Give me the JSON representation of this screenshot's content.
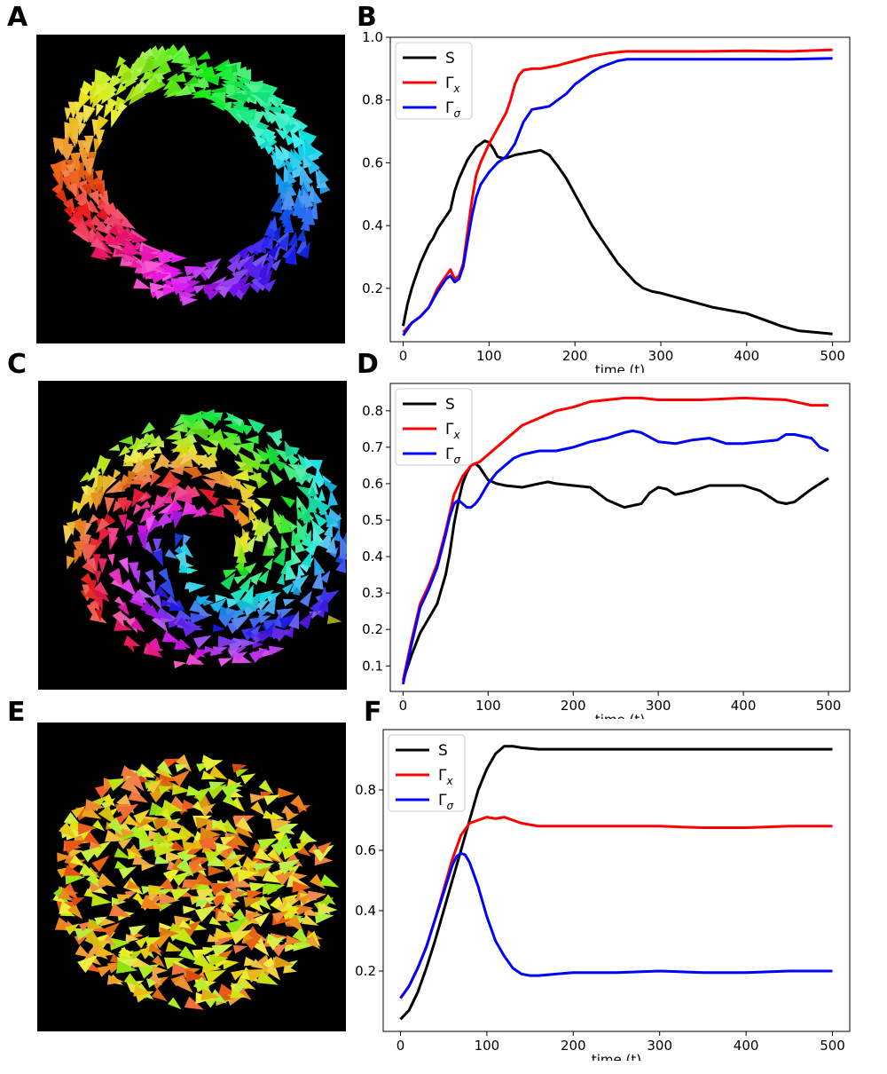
{
  "panels": {
    "A": "A",
    "B": "B",
    "C": "C",
    "D": "D",
    "E": "E",
    "F": "F"
  },
  "simulations": [
    {
      "panel": "A",
      "pattern": "ring"
    },
    {
      "panel": "C",
      "pattern": "swirl"
    },
    {
      "panel": "E",
      "pattern": "disk"
    }
  ],
  "chart_data": [
    {
      "panel": "B",
      "type": "line",
      "title": "",
      "xlabel": "time (t)",
      "ylabel": "",
      "xlim": [
        -15,
        520
      ],
      "ylim": [
        0.03,
        1.0
      ],
      "xticks": [
        0,
        100,
        200,
        300,
        400,
        500
      ],
      "yticks": [
        0.2,
        0.4,
        0.6,
        0.8,
        1.0
      ],
      "ytick_labels": [
        "0.2",
        "0.4",
        "0.6",
        "0.8",
        "1.0"
      ],
      "legend": "top-left",
      "series": [
        {
          "name": "S",
          "sub": "",
          "color": "#000000",
          "x": [
            0,
            5,
            10,
            15,
            20,
            25,
            30,
            35,
            40,
            45,
            50,
            55,
            60,
            65,
            70,
            75,
            80,
            85,
            90,
            95,
            100,
            105,
            110,
            115,
            120,
            130,
            140,
            150,
            160,
            170,
            180,
            190,
            200,
            210,
            220,
            230,
            240,
            250,
            260,
            270,
            280,
            290,
            300,
            320,
            340,
            360,
            380,
            400,
            420,
            440,
            460,
            480,
            500
          ],
          "y": [
            0.08,
            0.15,
            0.2,
            0.24,
            0.28,
            0.31,
            0.34,
            0.36,
            0.39,
            0.41,
            0.43,
            0.45,
            0.51,
            0.55,
            0.58,
            0.61,
            0.63,
            0.65,
            0.66,
            0.67,
            0.665,
            0.645,
            0.62,
            0.615,
            0.615,
            0.625,
            0.63,
            0.635,
            0.64,
            0.625,
            0.59,
            0.55,
            0.5,
            0.45,
            0.4,
            0.36,
            0.32,
            0.28,
            0.25,
            0.22,
            0.2,
            0.19,
            0.185,
            0.17,
            0.155,
            0.14,
            0.13,
            0.12,
            0.1,
            0.08,
            0.065,
            0.06,
            0.055
          ]
        },
        {
          "name": "Γ",
          "sub": "x",
          "color": "#ff0000",
          "x": [
            0,
            10,
            20,
            30,
            40,
            50,
            55,
            60,
            65,
            70,
            75,
            80,
            85,
            90,
            100,
            110,
            120,
            125,
            130,
            135,
            140,
            150,
            160,
            170,
            180,
            200,
            220,
            240,
            260,
            300,
            350,
            400,
            450,
            500
          ],
          "y": [
            0.06,
            0.09,
            0.11,
            0.14,
            0.2,
            0.24,
            0.26,
            0.23,
            0.24,
            0.28,
            0.38,
            0.48,
            0.56,
            0.6,
            0.66,
            0.71,
            0.76,
            0.8,
            0.85,
            0.88,
            0.895,
            0.9,
            0.9,
            0.905,
            0.91,
            0.925,
            0.94,
            0.95,
            0.955,
            0.955,
            0.955,
            0.957,
            0.955,
            0.96
          ]
        },
        {
          "name": "Γ",
          "sub": "σ",
          "color": "#0000ff",
          "x": [
            0,
            10,
            20,
            30,
            40,
            50,
            55,
            60,
            65,
            70,
            75,
            80,
            85,
            90,
            100,
            110,
            120,
            130,
            140,
            150,
            160,
            170,
            180,
            190,
            200,
            210,
            220,
            230,
            240,
            250,
            260,
            300,
            350,
            400,
            450,
            500
          ],
          "y": [
            0.05,
            0.09,
            0.11,
            0.14,
            0.19,
            0.23,
            0.24,
            0.22,
            0.23,
            0.27,
            0.35,
            0.43,
            0.49,
            0.53,
            0.57,
            0.6,
            0.62,
            0.66,
            0.73,
            0.77,
            0.775,
            0.78,
            0.8,
            0.82,
            0.85,
            0.87,
            0.89,
            0.905,
            0.915,
            0.925,
            0.93,
            0.93,
            0.93,
            0.93,
            0.93,
            0.933
          ]
        }
      ]
    },
    {
      "panel": "D",
      "type": "line",
      "title": "",
      "xlabel": "time (t)",
      "ylabel": "",
      "xlim": [
        -15,
        525
      ],
      "ylim": [
        0.03,
        0.875
      ],
      "xticks": [
        0,
        100,
        200,
        300,
        400,
        500
      ],
      "yticks": [
        0.1,
        0.2,
        0.3,
        0.4,
        0.5,
        0.6,
        0.7,
        0.8
      ],
      "ytick_labels": [
        "0.1",
        "0.2",
        "0.3",
        "0.4",
        "0.5",
        "0.6",
        "0.7",
        "0.8"
      ],
      "legend": "top-left",
      "series": [
        {
          "name": "S",
          "sub": "",
          "color": "#000000",
          "x": [
            0,
            10,
            20,
            30,
            40,
            50,
            55,
            60,
            65,
            70,
            75,
            80,
            85,
            90,
            100,
            110,
            120,
            140,
            160,
            170,
            180,
            200,
            220,
            240,
            260,
            280,
            290,
            300,
            310,
            320,
            340,
            360,
            380,
            400,
            420,
            440,
            450,
            460,
            480,
            500
          ],
          "y": [
            0.06,
            0.13,
            0.19,
            0.23,
            0.27,
            0.35,
            0.41,
            0.49,
            0.55,
            0.6,
            0.63,
            0.65,
            0.655,
            0.645,
            0.61,
            0.6,
            0.595,
            0.59,
            0.6,
            0.605,
            0.6,
            0.595,
            0.59,
            0.555,
            0.535,
            0.545,
            0.575,
            0.59,
            0.585,
            0.57,
            0.58,
            0.595,
            0.595,
            0.595,
            0.58,
            0.55,
            0.545,
            0.55,
            0.585,
            0.615
          ]
        },
        {
          "name": "Γ",
          "sub": "x",
          "color": "#ff0000",
          "x": [
            0,
            10,
            20,
            30,
            40,
            50,
            60,
            70,
            80,
            90,
            100,
            120,
            140,
            160,
            180,
            200,
            220,
            240,
            260,
            280,
            300,
            350,
            400,
            450,
            480,
            500
          ],
          "y": [
            0.06,
            0.17,
            0.27,
            0.32,
            0.38,
            0.47,
            0.57,
            0.62,
            0.65,
            0.66,
            0.68,
            0.72,
            0.76,
            0.78,
            0.8,
            0.81,
            0.825,
            0.83,
            0.835,
            0.835,
            0.83,
            0.83,
            0.835,
            0.83,
            0.815,
            0.815
          ]
        },
        {
          "name": "Γ",
          "sub": "σ",
          "color": "#0000ff",
          "x": [
            0,
            10,
            20,
            30,
            40,
            50,
            55,
            60,
            65,
            70,
            75,
            80,
            85,
            90,
            100,
            110,
            120,
            130,
            140,
            160,
            180,
            200,
            220,
            240,
            260,
            270,
            280,
            300,
            320,
            340,
            360,
            380,
            400,
            420,
            440,
            450,
            460,
            480,
            490,
            500
          ],
          "y": [
            0.05,
            0.16,
            0.26,
            0.31,
            0.37,
            0.46,
            0.51,
            0.545,
            0.555,
            0.545,
            0.535,
            0.535,
            0.545,
            0.56,
            0.6,
            0.63,
            0.65,
            0.67,
            0.68,
            0.69,
            0.69,
            0.7,
            0.715,
            0.725,
            0.74,
            0.745,
            0.74,
            0.715,
            0.71,
            0.72,
            0.725,
            0.71,
            0.71,
            0.715,
            0.72,
            0.735,
            0.735,
            0.725,
            0.7,
            0.69
          ]
        }
      ]
    },
    {
      "panel": "F",
      "type": "line",
      "title": "",
      "xlabel": "time (t)",
      "ylabel": "",
      "xlim": [
        -20,
        520
      ],
      "ylim": [
        0.0,
        1.0
      ],
      "xticks": [
        0,
        100,
        200,
        300,
        400,
        500
      ],
      "yticks": [
        0.2,
        0.4,
        0.6,
        0.8
      ],
      "ytick_labels": [
        "0.2",
        "0.4",
        "0.6",
        "0.8"
      ],
      "legend": "top-left",
      "series": [
        {
          "name": "S",
          "sub": "",
          "color": "#000000",
          "x": [
            0,
            10,
            20,
            30,
            40,
            50,
            60,
            70,
            80,
            90,
            100,
            110,
            120,
            130,
            140,
            160,
            200,
            250,
            300,
            350,
            400,
            450,
            500
          ],
          "y": [
            0.04,
            0.07,
            0.13,
            0.21,
            0.3,
            0.4,
            0.5,
            0.6,
            0.7,
            0.8,
            0.87,
            0.92,
            0.945,
            0.945,
            0.94,
            0.935,
            0.935,
            0.935,
            0.935,
            0.935,
            0.935,
            0.935,
            0.935
          ]
        },
        {
          "name": "Γ",
          "sub": "x",
          "color": "#ff0000",
          "x": [
            0,
            10,
            20,
            30,
            40,
            50,
            60,
            70,
            80,
            90,
            100,
            110,
            120,
            130,
            140,
            150,
            160,
            180,
            200,
            250,
            300,
            350,
            400,
            450,
            500
          ],
          "y": [
            0.11,
            0.15,
            0.21,
            0.28,
            0.37,
            0.47,
            0.57,
            0.65,
            0.69,
            0.7,
            0.71,
            0.705,
            0.71,
            0.7,
            0.69,
            0.685,
            0.68,
            0.68,
            0.68,
            0.68,
            0.68,
            0.675,
            0.675,
            0.68,
            0.68
          ]
        },
        {
          "name": "Γ",
          "sub": "σ",
          "color": "#0000ff",
          "x": [
            0,
            10,
            20,
            30,
            40,
            50,
            60,
            65,
            70,
            75,
            80,
            90,
            100,
            110,
            120,
            130,
            140,
            150,
            160,
            180,
            200,
            250,
            300,
            350,
            400,
            450,
            500
          ],
          "y": [
            0.11,
            0.15,
            0.21,
            0.28,
            0.37,
            0.46,
            0.55,
            0.58,
            0.59,
            0.585,
            0.56,
            0.48,
            0.38,
            0.3,
            0.25,
            0.21,
            0.19,
            0.185,
            0.185,
            0.19,
            0.195,
            0.195,
            0.2,
            0.195,
            0.195,
            0.2,
            0.2
          ]
        }
      ]
    }
  ]
}
